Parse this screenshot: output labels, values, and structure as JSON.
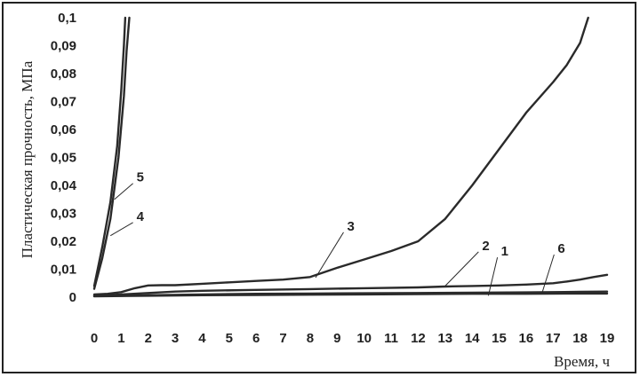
{
  "chart_data": {
    "type": "line",
    "title": "",
    "xlabel": "Время, ч",
    "ylabel": "Пластическая прочность, МПа",
    "xlim": [
      0,
      19
    ],
    "ylim": [
      0,
      0.1
    ],
    "xticks": [
      "0",
      "1",
      "2",
      "3",
      "4",
      "5",
      "6",
      "7",
      "8",
      "9",
      "10",
      "11",
      "12",
      "13",
      "14",
      "15",
      "16",
      "17",
      "18",
      "19"
    ],
    "yticks": [
      "0",
      "0,01",
      "0,02",
      "0,03",
      "0,04",
      "0,05",
      "0,06",
      "0,07",
      "0,08",
      "0,09",
      "0,1"
    ],
    "grid": false,
    "colors": {
      "line": "#2a2a2a",
      "text": "#222222",
      "border": "#222222"
    },
    "series": [
      {
        "name": "1",
        "label_at": [
          15.2,
          0.0155
        ],
        "leader_to": [
          14.6,
          0.0005
        ],
        "x": [
          0,
          1,
          2,
          4,
          6,
          8,
          10,
          12,
          14,
          16,
          17,
          18,
          19
        ],
        "y": [
          0.0005,
          0.0005,
          0.0007,
          0.001,
          0.0012,
          0.0013,
          0.0014,
          0.0015,
          0.0016,
          0.0017,
          0.0018,
          0.0019,
          0.002
        ]
      },
      {
        "name": "2",
        "label_at": [
          14.5,
          0.0175
        ],
        "leader_to": [
          13.0,
          0.004
        ],
        "x": [
          0,
          0.5,
          1,
          2,
          3,
          4,
          6,
          8,
          10,
          12,
          13,
          14,
          15,
          16,
          17,
          17.5,
          18,
          18.5,
          19
        ],
        "y": [
          0.0005,
          0.0007,
          0.001,
          0.0015,
          0.002,
          0.0023,
          0.0026,
          0.0029,
          0.0032,
          0.0035,
          0.0038,
          0.004,
          0.0042,
          0.0045,
          0.005,
          0.0056,
          0.0063,
          0.0072,
          0.008
        ]
      },
      {
        "name": "3",
        "label_at": [
          9.5,
          0.0245
        ],
        "leader_to": [
          8.2,
          0.007
        ],
        "x": [
          0,
          0.5,
          1,
          1.5,
          2,
          2.5,
          3,
          4,
          5,
          6,
          7,
          8,
          9,
          10,
          11,
          12,
          13,
          14,
          15,
          16,
          17,
          17.5,
          18,
          18.3
        ],
        "y": [
          0.001,
          0.0012,
          0.0018,
          0.0032,
          0.0042,
          0.0043,
          0.0043,
          0.0048,
          0.0053,
          0.0058,
          0.0063,
          0.0072,
          0.0105,
          0.0135,
          0.0165,
          0.02,
          0.028,
          0.04,
          0.053,
          0.066,
          0.077,
          0.083,
          0.091,
          0.1
        ]
      },
      {
        "name": "4",
        "label_at": [
          1.7,
          0.028
        ],
        "leader_to": [
          0.6,
          0.022
        ],
        "x": [
          0,
          0.3,
          0.6,
          0.9,
          1.1,
          1.2,
          1.3
        ],
        "y": [
          0.003,
          0.014,
          0.028,
          0.05,
          0.072,
          0.088,
          0.1
        ]
      },
      {
        "name": "5",
        "label_at": [
          1.7,
          0.042
        ],
        "leader_to": [
          0.75,
          0.035
        ],
        "x": [
          0,
          0.3,
          0.6,
          0.85,
          1.0,
          1.1,
          1.15
        ],
        "y": [
          0.004,
          0.018,
          0.034,
          0.054,
          0.074,
          0.09,
          0.1
        ]
      },
      {
        "name": "6",
        "label_at": [
          17.3,
          0.0165
        ],
        "leader_to": [
          16.6,
          0.0018
        ],
        "x": [
          0,
          1,
          2,
          4,
          6,
          8,
          10,
          12,
          14,
          16,
          18,
          19
        ],
        "y": [
          0.0003,
          0.0004,
          0.0005,
          0.0007,
          0.0008,
          0.0009,
          0.001,
          0.0011,
          0.0012,
          0.0012,
          0.0013,
          0.0013
        ]
      }
    ]
  }
}
